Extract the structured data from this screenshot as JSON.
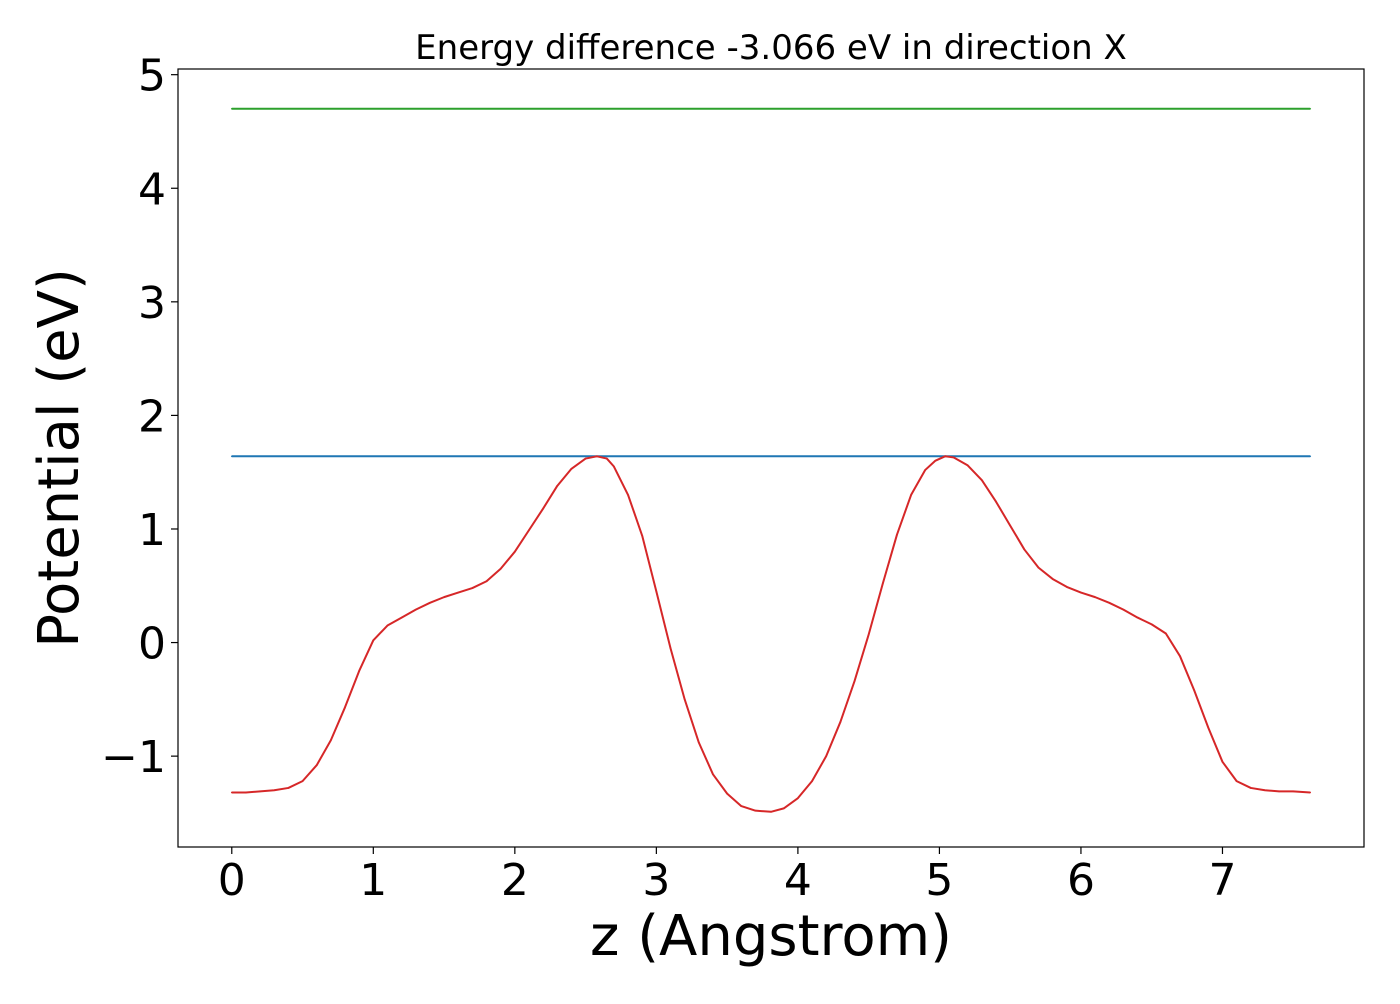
{
  "chart_data": {
    "type": "line",
    "title": "Energy difference -3.066 eV in direction X",
    "xlabel": "z (Angstrom)",
    "ylabel": "Potential (eV)",
    "xlim": [
      -0.38,
      8.0
    ],
    "ylim": [
      -1.8,
      5.05
    ],
    "xticks": [
      0,
      1,
      2,
      3,
      4,
      5,
      6,
      7
    ],
    "xtick_labels": [
      "0",
      "1",
      "2",
      "3",
      "4",
      "5",
      "6",
      "7"
    ],
    "yticks": [
      -1,
      0,
      1,
      2,
      3,
      4,
      5
    ],
    "ytick_labels": [
      "−1",
      "0",
      "1",
      "2",
      "3",
      "4",
      "5"
    ],
    "grid": false,
    "series": [
      {
        "color": "#2ca02c",
        "x": [
          0,
          7.62
        ],
        "y": [
          4.7,
          4.7
        ]
      },
      {
        "color": "#1f77b4",
        "x": [
          0,
          7.62
        ],
        "y": [
          1.64,
          1.64
        ]
      },
      {
        "color": "#d62728",
        "x": [
          0.0,
          0.1,
          0.2,
          0.3,
          0.4,
          0.5,
          0.6,
          0.7,
          0.8,
          0.9,
          1.0,
          1.1,
          1.2,
          1.3,
          1.4,
          1.5,
          1.6,
          1.7,
          1.8,
          1.9,
          2.0,
          2.1,
          2.2,
          2.3,
          2.4,
          2.5,
          2.58,
          2.65,
          2.7,
          2.8,
          2.9,
          3.0,
          3.1,
          3.2,
          3.3,
          3.4,
          3.5,
          3.6,
          3.7,
          3.81,
          3.9,
          4.0,
          4.1,
          4.2,
          4.3,
          4.4,
          4.5,
          4.6,
          4.7,
          4.8,
          4.9,
          4.97,
          5.04,
          5.1,
          5.2,
          5.3,
          5.4,
          5.5,
          5.6,
          5.7,
          5.8,
          5.9,
          6.0,
          6.1,
          6.2,
          6.3,
          6.4,
          6.5,
          6.6,
          6.7,
          6.8,
          6.9,
          7.0,
          7.1,
          7.2,
          7.3,
          7.4,
          7.5,
          7.62
        ],
        "y": [
          -1.32,
          -1.32,
          -1.31,
          -1.3,
          -1.28,
          -1.22,
          -1.08,
          -0.86,
          -0.57,
          -0.25,
          0.02,
          0.15,
          0.22,
          0.29,
          0.35,
          0.4,
          0.44,
          0.48,
          0.54,
          0.65,
          0.8,
          0.99,
          1.18,
          1.38,
          1.53,
          1.62,
          1.64,
          1.62,
          1.55,
          1.3,
          0.94,
          0.45,
          -0.05,
          -0.5,
          -0.88,
          -1.16,
          -1.33,
          -1.44,
          -1.48,
          -1.49,
          -1.46,
          -1.37,
          -1.22,
          -1.0,
          -0.7,
          -0.34,
          0.07,
          0.52,
          0.95,
          1.3,
          1.52,
          1.6,
          1.64,
          1.63,
          1.56,
          1.43,
          1.24,
          1.03,
          0.82,
          0.66,
          0.56,
          0.49,
          0.44,
          0.4,
          0.35,
          0.29,
          0.22,
          0.16,
          0.08,
          -0.12,
          -0.42,
          -0.75,
          -1.05,
          -1.22,
          -1.28,
          -1.3,
          -1.31,
          -1.31,
          -1.32
        ]
      }
    ]
  }
}
